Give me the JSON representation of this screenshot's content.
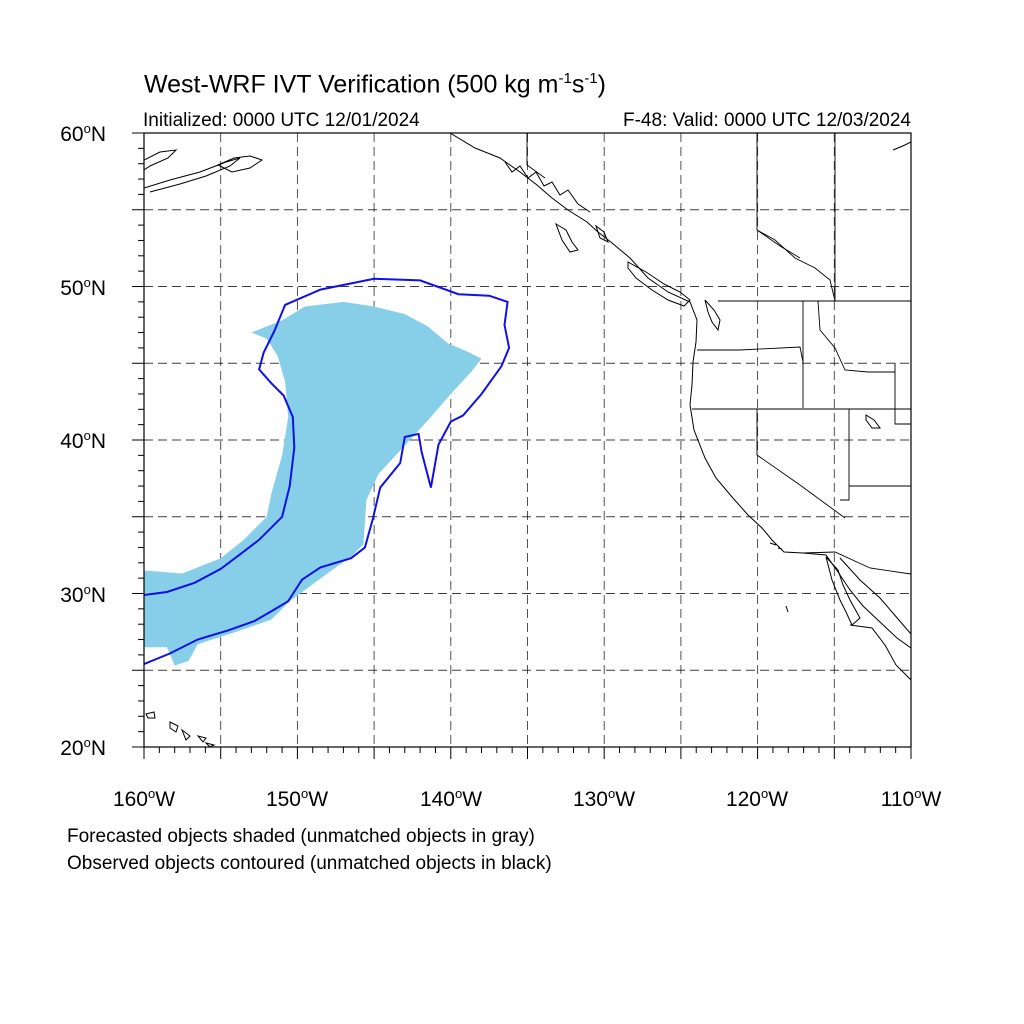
{
  "title": {
    "text": "West-WRF IVT Verification (500 kg m",
    "sup1": "-1",
    "mid": "s",
    "sup2": "-1",
    "end": ")"
  },
  "initialized": "Initialized: 0000 UTC 12/01/2024",
  "valid": "F-48: Valid: 0000 UTC 12/03/2024",
  "map": {
    "lon_range": [
      -160,
      -110
    ],
    "lat_range": [
      20,
      60
    ],
    "grid": "dashed every 5 degrees",
    "y_ticks": [
      {
        "num": "60",
        "deg": "o",
        "hemi": "N"
      },
      {
        "num": "50",
        "deg": "o",
        "hemi": "N"
      },
      {
        "num": "40",
        "deg": "o",
        "hemi": "N"
      },
      {
        "num": "30",
        "deg": "o",
        "hemi": "N"
      },
      {
        "num": "20",
        "deg": "o",
        "hemi": "N"
      }
    ],
    "x_ticks": [
      {
        "num": "160",
        "deg": "o",
        "hemi": "W"
      },
      {
        "num": "150",
        "deg": "o",
        "hemi": "W"
      },
      {
        "num": "140",
        "deg": "o",
        "hemi": "W"
      },
      {
        "num": "130",
        "deg": "o",
        "hemi": "W"
      },
      {
        "num": "120",
        "deg": "o",
        "hemi": "W"
      },
      {
        "num": "110",
        "deg": "o",
        "hemi": "W"
      }
    ],
    "forecast_fill_color": "#87CEE8",
    "observed_contour_color": "#1010E8",
    "forecast_object": [
      [
        -160,
        31.5
      ],
      [
        -157.5,
        31.3
      ],
      [
        -155,
        32.3
      ],
      [
        -153.5,
        33.5
      ],
      [
        -152,
        35
      ],
      [
        -151.7,
        36.5
      ],
      [
        -151,
        39
      ],
      [
        -150.6,
        41.5
      ],
      [
        -150.8,
        43.8
      ],
      [
        -151.3,
        45.5
      ],
      [
        -152,
        46.6
      ],
      [
        -153,
        47
      ],
      [
        -151,
        47.8
      ],
      [
        -149.5,
        48.7
      ],
      [
        -147,
        49
      ],
      [
        -145,
        48.7
      ],
      [
        -143,
        48.2
      ],
      [
        -141.5,
        47.4
      ],
      [
        -140.2,
        46.3
      ],
      [
        -139,
        45.8
      ],
      [
        -138,
        45.3
      ],
      [
        -138.7,
        44.4
      ],
      [
        -140,
        43
      ],
      [
        -141.3,
        41.5
      ],
      [
        -142.3,
        40.4
      ],
      [
        -143.6,
        39
      ],
      [
        -144.7,
        37.8
      ],
      [
        -145.5,
        36.1
      ],
      [
        -145.7,
        33.2
      ],
      [
        -146.5,
        32.4
      ],
      [
        -147.5,
        31.7
      ],
      [
        -149,
        30.6
      ],
      [
        -150.5,
        29.5
      ],
      [
        -151.7,
        28.3
      ],
      [
        -154,
        27.5
      ],
      [
        -156.5,
        26.7
      ],
      [
        -157.1,
        25.6
      ],
      [
        -158,
        25.3
      ],
      [
        -158.5,
        26.5
      ],
      [
        -160,
        26.5
      ]
    ],
    "observed_object": [
      [
        -160,
        29.9
      ],
      [
        -158.5,
        30.1
      ],
      [
        -156.7,
        30.7
      ],
      [
        -155,
        31.6
      ],
      [
        -153.8,
        32.5
      ],
      [
        -152.5,
        33.5
      ],
      [
        -151,
        35
      ],
      [
        -150.5,
        37
      ],
      [
        -150.2,
        39.5
      ],
      [
        -150.3,
        41.5
      ],
      [
        -150.9,
        42.9
      ],
      [
        -151.7,
        43.7
      ],
      [
        -152.5,
        44.6
      ],
      [
        -152.2,
        45.7
      ],
      [
        -151.5,
        47.1
      ],
      [
        -150.8,
        48.8
      ],
      [
        -148.5,
        49.8
      ],
      [
        -145,
        50.5
      ],
      [
        -142,
        50.4
      ],
      [
        -139.5,
        49.5
      ],
      [
        -137.5,
        49.4
      ],
      [
        -136.3,
        49
      ],
      [
        -136.5,
        47.5
      ],
      [
        -136.2,
        46
      ],
      [
        -136.7,
        44.8
      ],
      [
        -138,
        43
      ],
      [
        -139.2,
        41.6
      ],
      [
        -140,
        41.2
      ],
      [
        -140.8,
        39.7
      ],
      [
        -141.3,
        36.9
      ],
      [
        -141.9,
        39.2
      ],
      [
        -142.1,
        40.4
      ],
      [
        -143,
        40.2
      ],
      [
        -143.3,
        38.5
      ],
      [
        -144.6,
        36.9
      ],
      [
        -145.1,
        34.8
      ],
      [
        -145.6,
        33
      ],
      [
        -146.5,
        32.3
      ],
      [
        -148.5,
        31.7
      ],
      [
        -149.7,
        30.9
      ],
      [
        -150.6,
        29.5
      ],
      [
        -151.6,
        28.9
      ],
      [
        -152.8,
        28.2
      ],
      [
        -154.5,
        27.6
      ],
      [
        -156.5,
        27
      ],
      [
        -158.3,
        26.1
      ],
      [
        -160,
        25.4
      ]
    ]
  },
  "footnotes": [
    "Forecasted objects shaded (unmatched objects in gray)",
    "Observed objects contoured (unmatched objects in black)"
  ]
}
